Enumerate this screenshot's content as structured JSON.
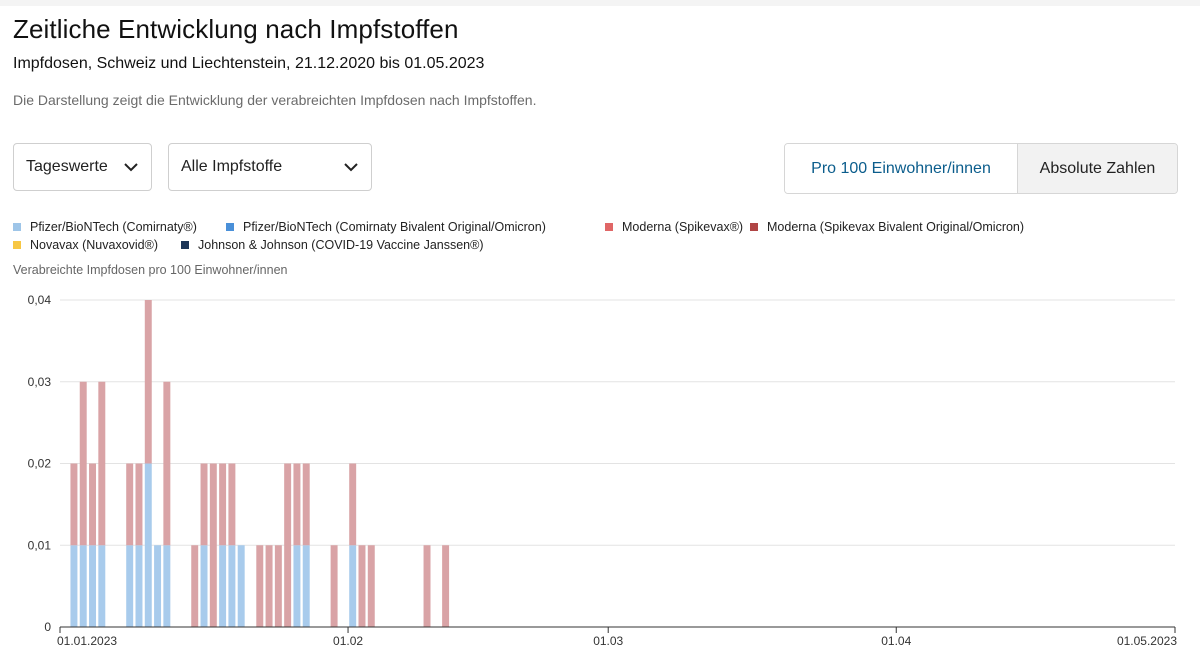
{
  "header": {
    "title": "Zeitliche Entwicklung nach Impfstoffen",
    "subtitle": "Impfdosen, Schweiz und Liechtenstein, 21.12.2020 bis 01.05.2023",
    "description": "Die Darstellung zeigt die Entwicklung der verabreichten Impfdosen nach Impfstoffen."
  },
  "controls": {
    "period_select": "Tageswerte",
    "vaccine_select": "Alle Impfstoffe",
    "toggle_relative": "Pro 100 Einwohner/innen",
    "toggle_absolute": "Absolute Zahlen",
    "active_toggle": "relative"
  },
  "legend": [
    {
      "label": "Pfizer/BioNTech (Comirnaty®)",
      "color": "#9ec5e8"
    },
    {
      "label": "Pfizer/BioNTech (Comirnaty Bivalent Original/Omicron)",
      "color": "#4a90d9"
    },
    {
      "label": "Moderna (Spikevax®)",
      "color": "#e06666"
    },
    {
      "label": "Moderna (Spikevax Bivalent Original/Omicron)",
      "color": "#b04545"
    },
    {
      "label": "Novavax (Nuvaxovid®)",
      "color": "#f7c744"
    },
    {
      "label": "Johnson & Johnson (COVID-19 Vaccine Janssen®)",
      "color": "#1c3557"
    }
  ],
  "chart_data": {
    "type": "bar",
    "stacked": true,
    "ylabel": "Verabreichte Impfdosen pro 100 Einwohner/innen",
    "ylim": [
      0,
      0.04
    ],
    "yticks": [
      "0",
      "0,01",
      "0,02",
      "0,03",
      "0,04"
    ],
    "x_start": "2023-01-01",
    "x_end": "2023-05-01",
    "xticks": [
      "01.01.2023",
      "01.02",
      "01.03",
      "01.04",
      "01.05.2023"
    ],
    "grid": true,
    "series": [
      {
        "name": "Pfizer/BioNTech (Comirnaty®)",
        "color": "#a8cbec",
        "points": [
          [
            "2023-01-02",
            0.01
          ],
          [
            "2023-01-03",
            0.01
          ],
          [
            "2023-01-04",
            0.01
          ],
          [
            "2023-01-05",
            0.01
          ],
          [
            "2023-01-08",
            0.01
          ],
          [
            "2023-01-09",
            0.01
          ],
          [
            "2023-01-10",
            0.02
          ],
          [
            "2023-01-11",
            0.01
          ],
          [
            "2023-01-12",
            0.01
          ],
          [
            "2023-01-16",
            0.01
          ],
          [
            "2023-01-18",
            0.01
          ],
          [
            "2023-01-19",
            0.01
          ],
          [
            "2023-01-20",
            0.01
          ],
          [
            "2023-01-26",
            0.01
          ],
          [
            "2023-01-27",
            0.01
          ],
          [
            "2023-02-01",
            0.01
          ]
        ]
      },
      {
        "name": "Moderna (Spikevax Bivalent Original/Omicron)",
        "color": "#d9a3a6",
        "points": [
          [
            "2023-01-02",
            0.01
          ],
          [
            "2023-01-03",
            0.02
          ],
          [
            "2023-01-04",
            0.01
          ],
          [
            "2023-01-05",
            0.02
          ],
          [
            "2023-01-08",
            0.01
          ],
          [
            "2023-01-09",
            0.01
          ],
          [
            "2023-01-10",
            0.02
          ],
          [
            "2023-01-12",
            0.02
          ],
          [
            "2023-01-15",
            0.01
          ],
          [
            "2023-01-16",
            0.01
          ],
          [
            "2023-01-17",
            0.02
          ],
          [
            "2023-01-18",
            0.01
          ],
          [
            "2023-01-19",
            0.01
          ],
          [
            "2023-01-22",
            0.01
          ],
          [
            "2023-01-23",
            0.01
          ],
          [
            "2023-01-24",
            0.01
          ],
          [
            "2023-01-25",
            0.02
          ],
          [
            "2023-01-26",
            0.01
          ],
          [
            "2023-01-27",
            0.01
          ],
          [
            "2023-01-30",
            0.01
          ],
          [
            "2023-02-01",
            0.01
          ],
          [
            "2023-02-02",
            0.01
          ],
          [
            "2023-02-03",
            0.01
          ],
          [
            "2023-02-09",
            0.01
          ],
          [
            "2023-02-11",
            0.01
          ]
        ]
      }
    ]
  }
}
